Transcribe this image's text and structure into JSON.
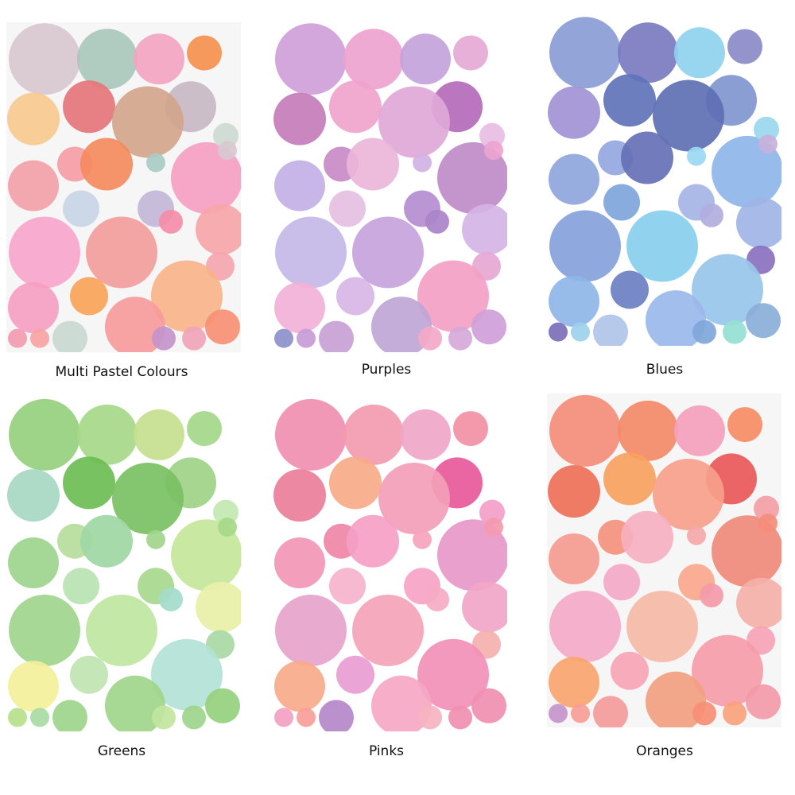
{
  "panels": [
    {
      "label": "Multi Pastel Colours",
      "colors": [
        "#d8c8d0",
        "#a9c7bb",
        "#f3a4c0",
        "#f5904f",
        "#c8b8c4",
        "#e5757a",
        "#f9c98e",
        "#d2a58c",
        "#f59da5",
        "#f48a5e",
        "#a9cbc4",
        "#f59fc2",
        "#f2a0a8",
        "#c8d5e6",
        "#c2b6d6",
        "#cddad0",
        "#f6a6a8",
        "#f7a6cc",
        "#f29d9c",
        "#f58ca8",
        "#f5a5ae",
        "#f7b38a",
        "#f5a0c2",
        "#f8a357",
        "#f69b9b",
        "#c8d8cf",
        "#f39ab0",
        "#f7a3a3",
        "#c494cc",
        "#f0a3b8",
        "#f68f74"
      ]
    },
    {
      "label": "Purples",
      "colors": [
        "#cf9fd8",
        "#eda3cf",
        "#c3a3db",
        "#e5a9d6",
        "#b46bbb",
        "#f0a4cc",
        "#c67cb9",
        "#e0a8d8",
        "#c98bc8",
        "#ecb5d8",
        "#d3b2e5",
        "#bf8cc8",
        "#c4b0e6",
        "#e6bfe2",
        "#b48dd0",
        "#e8bde3",
        "#d4b4e5",
        "#c4b7e8",
        "#c6a3dc",
        "#aa83c9",
        "#e7a7d2",
        "#f4a0c4",
        "#f2b1d8",
        "#d8b5e6",
        "#bfa6d6",
        "#c8a1d6",
        "#8d8fcc",
        "#c79bd6",
        "#f3a8c8",
        "#d6a8d8"
      ]
    },
    {
      "label": "Blues",
      "colors": [
        "#8a9cd6",
        "#7b7bc0",
        "#8fd1ee",
        "#8b8ac8",
        "#8096cf",
        "#6073b8",
        "#a193d4",
        "#5e6fb3",
        "#95a8e0",
        "#6670b5",
        "#9ad8f2",
        "#8eb5e8",
        "#8ea6dc",
        "#7fa5dc",
        "#a5b4e6",
        "#9ad8ee",
        "#9fb4e6",
        "#86a2dc",
        "#88cfee",
        "#b1aee0",
        "#8b71bf",
        "#98c6ea",
        "#8fb6e8",
        "#6d7fc2",
        "#9ab8ea",
        "#b0c4e8",
        "#7a6fb7",
        "#9dd0ec",
        "#7fa7da",
        "#95e0d4",
        "#8aaed8",
        "#c7b1dc"
      ]
    },
    {
      "label": "Greens",
      "colors": [
        "#96d07e",
        "#a6d888",
        "#c6e08e",
        "#a4d789",
        "#9ed287",
        "#6cbd54",
        "#a6d8c2",
        "#79c063",
        "#b6dd9c",
        "#a0d7a4",
        "#a1d58a",
        "#c4e69a",
        "#9dd58d",
        "#b7e3b2",
        "#a7d88d",
        "#c2e8b0",
        "#e8f0a8",
        "#9fd58d",
        "#bfe6a0",
        "#a3dccc",
        "#a9d8a3",
        "#b3e2d6",
        "#f4f09a",
        "#c0e4b0",
        "#a0d58b",
        "#9dd58b",
        "#b7e08a",
        "#a8dba3",
        "#c1e59d",
        "#9dd58b"
      ]
    },
    {
      "label": "Pinks",
      "colors": [
        "#f08fb0",
        "#f39ab0",
        "#f0a6c8",
        "#f290a5",
        "#e8599b",
        "#f7aa88",
        "#ec7e9b",
        "#f39eb9",
        "#f085a8",
        "#f5a0c6",
        "#f6a4bd",
        "#e898c9",
        "#f296b4",
        "#f5b3cc",
        "#f6a3c6",
        "#f39ec8",
        "#f2a6c8",
        "#e7a3cc",
        "#f4a3b9",
        "#f6aac3",
        "#f5b0ae",
        "#f390b8",
        "#f7aa8a",
        "#e89cd1",
        "#f5a7c4",
        "#b487c9",
        "#f4a0c2",
        "#f99d98",
        "#f5b3c0",
        "#f08fb0"
      ]
    },
    {
      "label": "Oranges",
      "colors": [
        "#f48c78",
        "#f38a67",
        "#f4a0bd",
        "#f58c64",
        "#e9585a",
        "#f8a15f",
        "#ee7058",
        "#f6a08a",
        "#f4917c",
        "#f5b0c0",
        "#f4a8a8",
        "#f08a79",
        "#f49b8f",
        "#f3a8c6",
        "#f8a78c",
        "#f2a0a6",
        "#f3b0a8",
        "#f4a9c8",
        "#f5b8a6",
        "#f39aa8",
        "#f5a3b5",
        "#f59ca8",
        "#f9a56f",
        "#f7a4b4",
        "#f2a080",
        "#f39a9a",
        "#c494cc",
        "#f79d98",
        "#f68e74",
        "#f8a27c",
        "#f39aa8"
      ]
    }
  ]
}
